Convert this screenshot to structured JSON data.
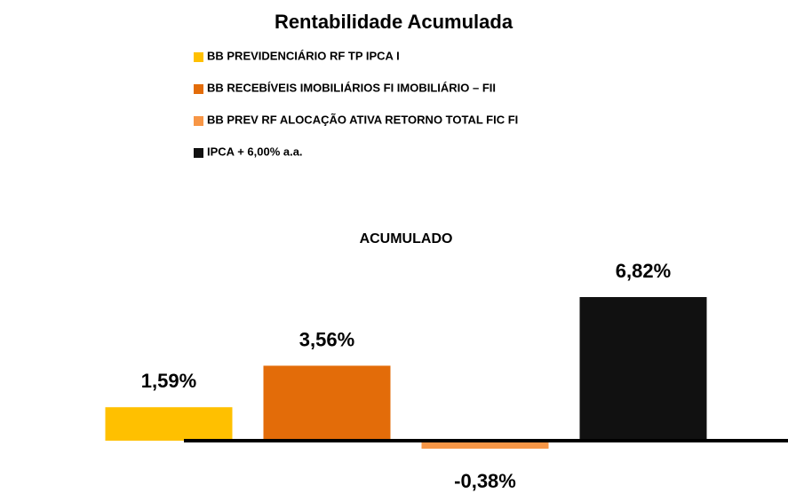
{
  "chart_data": {
    "type": "bar",
    "title": "Rentabilidade Acumulada",
    "categories": [
      "ACUMULADO"
    ],
    "series": [
      {
        "name": "BB PREVIDENCIÁRIO RF TP IPCA I",
        "color": "#FFC000",
        "values": [
          1.59
        ],
        "value_labels": [
          "1,59%"
        ]
      },
      {
        "name": "BB RECEBÍVEIS IMOBILIÁRIOS FI IMOBILIÁRIO – FII",
        "color": "#E36C09",
        "values": [
          3.56
        ],
        "value_labels": [
          "3,56%"
        ]
      },
      {
        "name": "BB PREV RF ALOCAÇÃO ATIVA RETORNO TOTAL FIC FI",
        "color": "#F79646",
        "values": [
          -0.38
        ],
        "value_labels": [
          "-0,38%"
        ]
      },
      {
        "name": "IPCA + 6,00% a.a.",
        "color": "#111111",
        "values": [
          6.82
        ],
        "value_labels": [
          "6,82%"
        ]
      }
    ],
    "ylim": [
      -2,
      8
    ]
  }
}
